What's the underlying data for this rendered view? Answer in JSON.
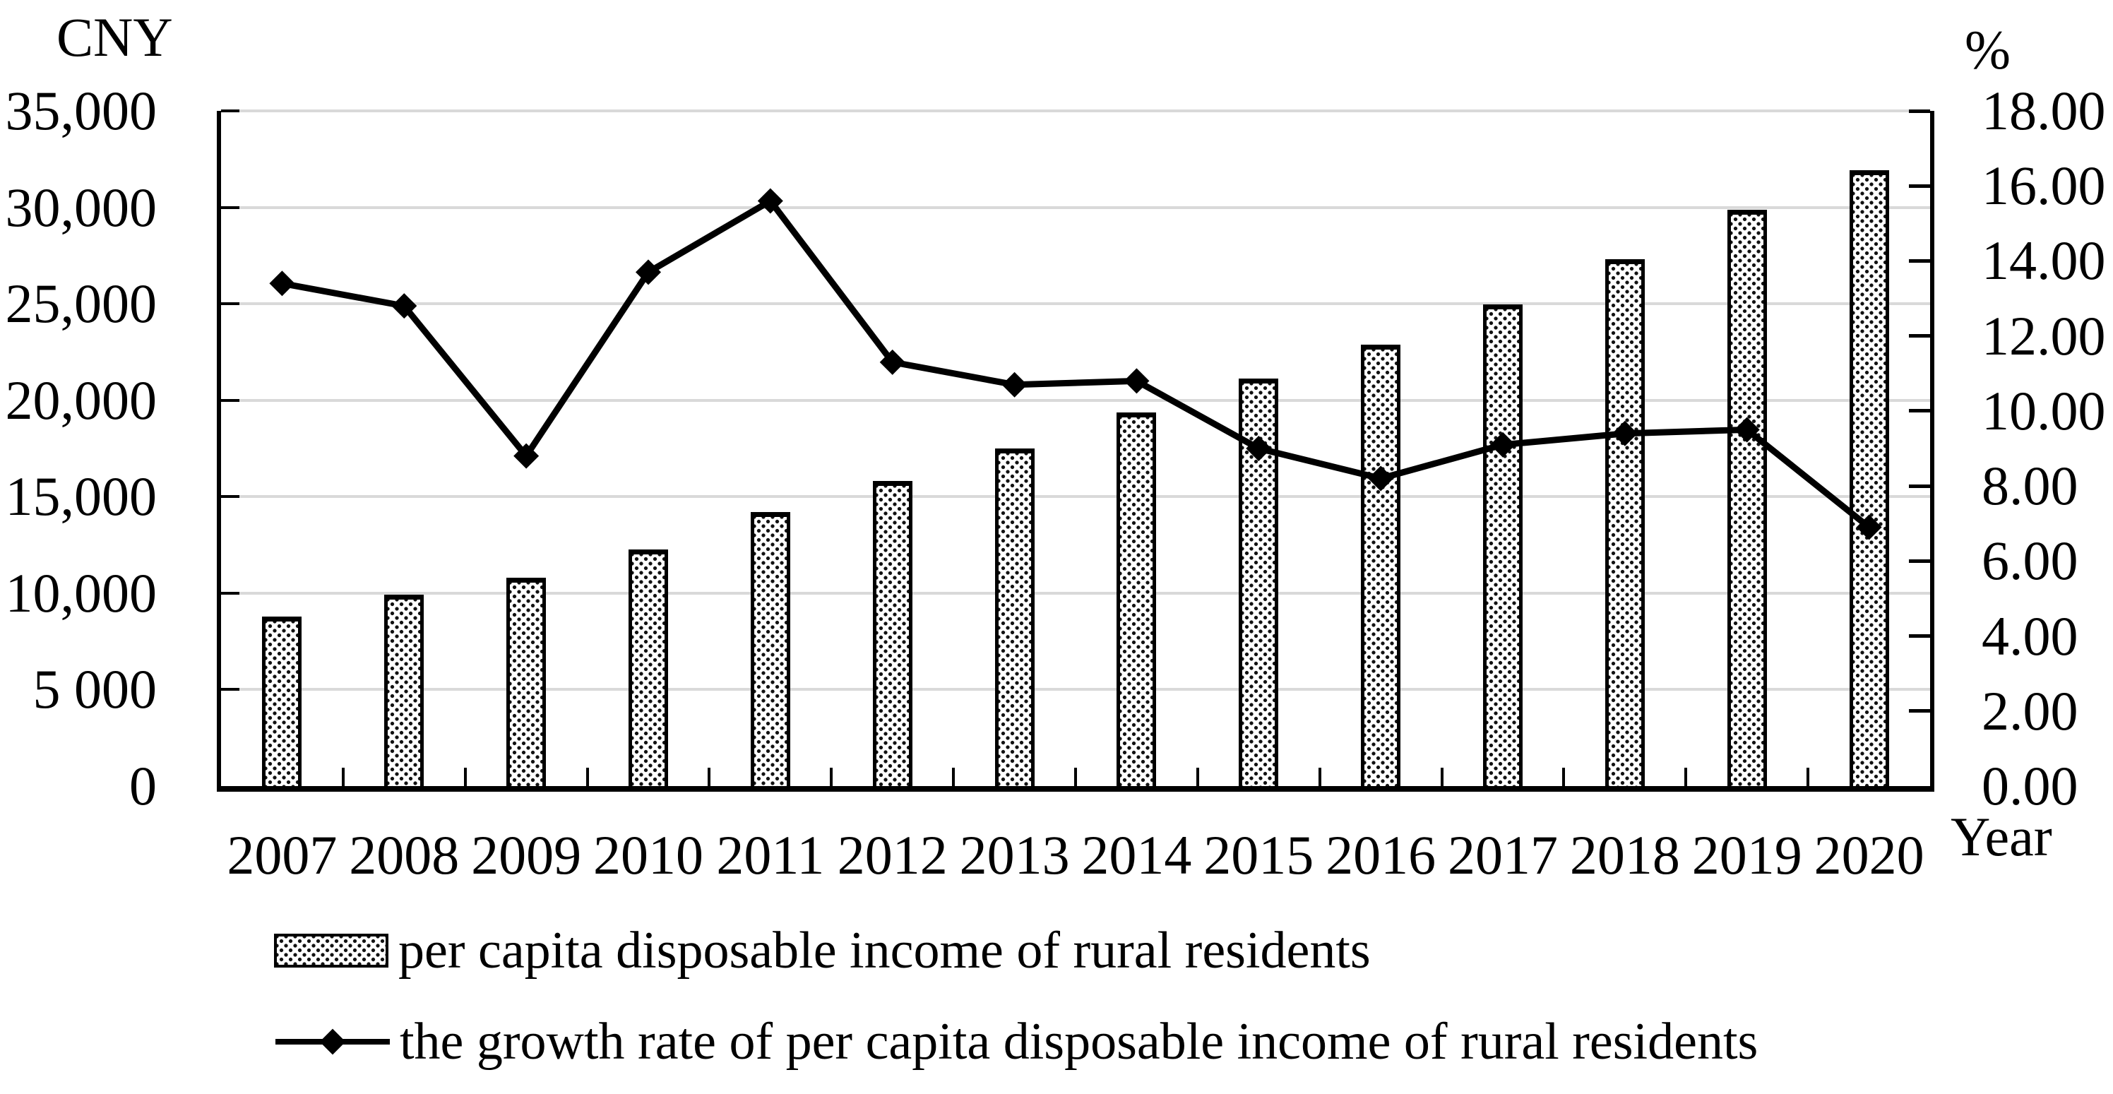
{
  "figure": {
    "left_axis_title": "CNY",
    "right_axis_title": "%",
    "x_axis_title": "Year"
  },
  "legend": {
    "items": [
      {
        "label": "per capita disposable income of rural residents",
        "marker": "dotted-bar-swatch"
      },
      {
        "label": "the growth rate of per capita disposable income of rural residents",
        "marker": "line-with-diamond"
      }
    ]
  },
  "colors": {
    "background": "#ffffff",
    "text": "#000000",
    "bar_fill": "#ffffff",
    "bar_dots": "#111111",
    "bar_border": "#000000",
    "line": "#000000",
    "gridline": "#d9d9d9"
  },
  "chart_data": {
    "type": "combo",
    "categories": [
      "2007",
      "2008",
      "2009",
      "2010",
      "2011",
      "2012",
      "2013",
      "2014",
      "2015",
      "2016",
      "2017",
      "2018",
      "2019",
      "2020"
    ],
    "series": [
      {
        "name": "per capita disposable income of rural residents",
        "type": "bar",
        "axis": "left",
        "unit": "CNY",
        "values": [
          8800,
          9930,
          10820,
          12280,
          14200,
          15800,
          17490,
          19370,
          21130,
          22870,
          24960,
          27300,
          29880,
          31930
        ]
      },
      {
        "name": "the growth rate of per capita disposable income of rural residents",
        "type": "line",
        "axis": "right",
        "unit": "%",
        "marker": "diamond",
        "values": [
          13.4,
          12.8,
          8.8,
          13.7,
          15.6,
          11.3,
          10.7,
          10.8,
          9.0,
          8.2,
          9.1,
          9.4,
          9.5,
          6.9
        ]
      }
    ],
    "left_axis": {
      "title": "CNY",
      "min": 0,
      "max": 35000,
      "tick_step": 5000,
      "tick_labels": [
        "35,000",
        "30,000",
        "25,000",
        "20,000",
        "15,000",
        "10,000",
        "5 000",
        "0"
      ]
    },
    "right_axis": {
      "title": "%",
      "min": 0,
      "max": 18,
      "tick_step": 2,
      "tick_labels": [
        "18.00",
        "16.00",
        "14.00",
        "12.00",
        "10.00",
        "8.00",
        "6.00",
        "4.00",
        "2.00",
        "0.00"
      ]
    },
    "x_axis": {
      "title": "Year",
      "labels": [
        "2007",
        "2008",
        "2009",
        "2010",
        "2011",
        "2012",
        "2013",
        "2014",
        "2015",
        "2016",
        "2017",
        "2018",
        "2019",
        "2020"
      ]
    },
    "grid": "horizontal gridlines at every 5000 CNY, light gray",
    "legend_position": "below"
  }
}
